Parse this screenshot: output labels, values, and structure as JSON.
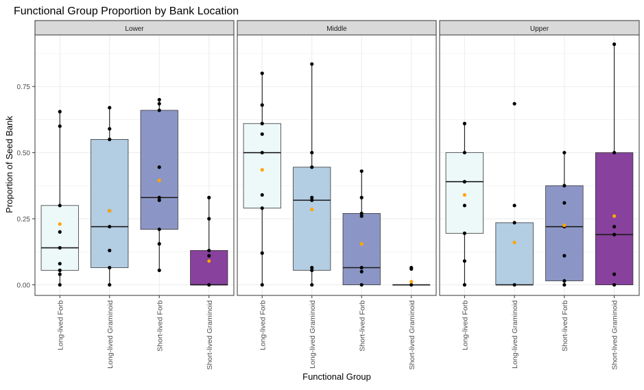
{
  "chart_data": {
    "type": "boxplot",
    "title": "Functional Group Proportion by Bank Location",
    "xlabel": "Functional Group",
    "ylabel": "Proportion of Seed Bank",
    "ylim": [
      -0.04,
      0.945
    ],
    "yticks": [
      0.0,
      0.25,
      0.5,
      0.75
    ],
    "ytick_labels": [
      "0.00",
      "0.25",
      "0.50",
      "0.75"
    ],
    "grid": true,
    "categories": [
      "Long-lived Forb",
      "Long-lived Graminoid",
      "Short-lived Forb",
      "Short-lived Graminoid"
    ],
    "colors": {
      "Long-lived Forb": "#edf8f8",
      "Long-lived Graminoid": "#b3cde3",
      "Short-lived Forb": "#8c96c6",
      "Short-lived Graminoid": "#88419d",
      "mean_point": "#ffa500",
      "data_point": "#000000",
      "strip": "#d9d9d9",
      "grid": "#ebebeb"
    },
    "panels": [
      {
        "label": "Lower",
        "groups": [
          {
            "category": "Long-lived Forb",
            "q1": 0.055,
            "median": 0.14,
            "q3": 0.3,
            "whisker_low": 0.0,
            "whisker_high": 0.655,
            "mean": 0.23,
            "points": [
              0.0,
              0.04,
              0.055,
              0.08,
              0.14,
              0.2,
              0.3,
              0.6,
              0.655
            ]
          },
          {
            "category": "Long-lived Graminoid",
            "q1": 0.065,
            "median": 0.22,
            "q3": 0.55,
            "whisker_low": 0.0,
            "whisker_high": 0.67,
            "mean": 0.28,
            "points": [
              0.0,
              0.065,
              0.13,
              0.22,
              0.28,
              0.55,
              0.59,
              0.67
            ]
          },
          {
            "category": "Short-lived Forb",
            "q1": 0.21,
            "median": 0.33,
            "q3": 0.66,
            "whisker_low": 0.055,
            "whisker_high": 0.7,
            "mean": 0.395,
            "points": [
              0.055,
              0.155,
              0.21,
              0.32,
              0.33,
              0.445,
              0.66,
              0.685,
              0.7
            ]
          },
          {
            "category": "Short-lived Graminoid",
            "q1": 0.0,
            "median": 0.0,
            "q3": 0.13,
            "whisker_low": 0.0,
            "whisker_high": 0.33,
            "mean": 0.09,
            "points": [
              0.0,
              0.09,
              0.11,
              0.13,
              0.25,
              0.33
            ]
          }
        ]
      },
      {
        "label": "Middle",
        "groups": [
          {
            "category": "Long-lived Forb",
            "q1": 0.29,
            "median": 0.5,
            "q3": 0.61,
            "whisker_low": 0.0,
            "whisker_high": 0.8,
            "mean": 0.435,
            "points": [
              0.0,
              0.12,
              0.29,
              0.34,
              0.5,
              0.57,
              0.61,
              0.68,
              0.8
            ]
          },
          {
            "category": "Long-lived Graminoid",
            "q1": 0.055,
            "median": 0.32,
            "q3": 0.445,
            "whisker_low": 0.0,
            "whisker_high": 0.835,
            "mean": 0.285,
            "points": [
              0.0,
              0.055,
              0.065,
              0.32,
              0.33,
              0.445,
              0.5,
              0.835
            ]
          },
          {
            "category": "Short-lived Forb",
            "q1": 0.0,
            "median": 0.065,
            "q3": 0.27,
            "whisker_low": 0.0,
            "whisker_high": 0.43,
            "mean": 0.155,
            "points": [
              0.0,
              0.05,
              0.065,
              0.26,
              0.27,
              0.33,
              0.43
            ]
          },
          {
            "category": "Short-lived Graminoid",
            "q1": 0.0,
            "median": 0.0,
            "q3": 0.0,
            "whisker_low": 0.0,
            "whisker_high": 0.0,
            "mean": 0.012,
            "points": [
              0.0,
              0.06,
              0.065
            ]
          }
        ]
      },
      {
        "label": "Upper",
        "groups": [
          {
            "category": "Long-lived Forb",
            "q1": 0.195,
            "median": 0.39,
            "q3": 0.5,
            "whisker_low": 0.0,
            "whisker_high": 0.61,
            "mean": 0.34,
            "points": [
              0.0,
              0.09,
              0.195,
              0.3,
              0.39,
              0.5,
              0.61
            ]
          },
          {
            "category": "Long-lived Graminoid",
            "q1": 0.0,
            "median": 0.0,
            "q3": 0.235,
            "whisker_low": 0.0,
            "whisker_high": 0.235,
            "mean": 0.16,
            "points": [
              0.0,
              0.235,
              0.3,
              0.685
            ]
          },
          {
            "category": "Short-lived Forb",
            "q1": 0.015,
            "median": 0.22,
            "q3": 0.375,
            "whisker_low": 0.0,
            "whisker_high": 0.5,
            "mean": 0.225,
            "points": [
              0.0,
              0.015,
              0.11,
              0.22,
              0.31,
              0.375,
              0.5
            ]
          },
          {
            "category": "Short-lived Graminoid",
            "q1": 0.0,
            "median": 0.19,
            "q3": 0.5,
            "whisker_low": 0.0,
            "whisker_high": 0.91,
            "mean": 0.26,
            "points": [
              0.0,
              0.04,
              0.19,
              0.22,
              0.5,
              0.91
            ]
          }
        ]
      }
    ]
  }
}
